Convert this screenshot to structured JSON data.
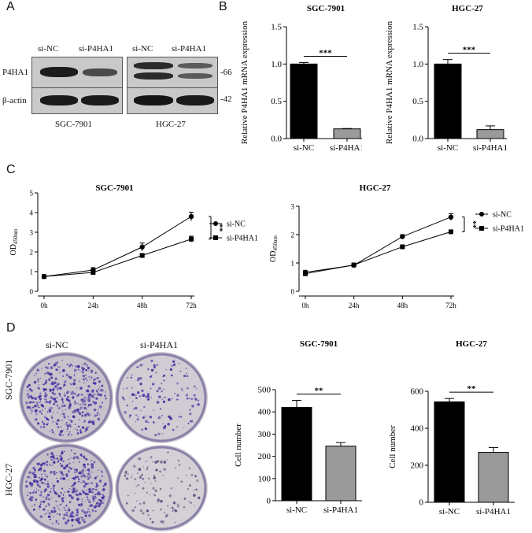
{
  "panels": {
    "a": "A",
    "b": "B",
    "c": "C",
    "d": "D"
  },
  "western": {
    "groups": [
      {
        "cell": "SGC-7901",
        "lanes": [
          "si-NC",
          "si-P4HA1"
        ]
      },
      {
        "cell": "HGC-27",
        "lanes": [
          "si-NC",
          "si-P4HA1"
        ]
      }
    ],
    "proteins": [
      "P4HA1",
      "β-actin"
    ],
    "markers": [
      "-66",
      "-42"
    ]
  },
  "colony": {
    "columns": [
      "si-NC",
      "si-P4HA1"
    ],
    "rows": [
      "SGC-7901",
      "HGC-27"
    ]
  },
  "chart_data": [
    {
      "id": "b1",
      "type": "bar",
      "title": "SGC-7901",
      "ylabel": "Relative P4HA1 mRNA expression",
      "xlabel": "",
      "categories": [
        "si-NC",
        "si-P4HA1"
      ],
      "values": [
        1.0,
        0.13
      ],
      "errors": [
        0.02,
        0.005
      ],
      "colors": [
        "#000000",
        "#9a9a9a"
      ],
      "ylim": [
        0,
        1.5
      ],
      "yticks": [
        0.0,
        0.5,
        1.0,
        1.5
      ],
      "significance": "***"
    },
    {
      "id": "b2",
      "type": "bar",
      "title": "HGC-27",
      "ylabel": "Relative P4HA1 mRNA expression",
      "xlabel": "",
      "categories": [
        "si-NC",
        "si-P4HA1"
      ],
      "values": [
        1.0,
        0.12
      ],
      "errors": [
        0.06,
        0.05
      ],
      "colors": [
        "#000000",
        "#9a9a9a"
      ],
      "ylim": [
        0,
        1.5
      ],
      "yticks": [
        0.0,
        0.5,
        1.0,
        1.5
      ],
      "significance": "***"
    },
    {
      "id": "c1",
      "type": "line",
      "title": "SGC-7901",
      "ylabel": "OD450nm",
      "x": [
        "0h",
        "24h",
        "48h",
        "72h"
      ],
      "ylim": [
        0,
        5
      ],
      "yticks": [
        0,
        1,
        2,
        3,
        4,
        5
      ],
      "series": [
        {
          "name": "si-NC",
          "marker": "circle",
          "values": [
            0.75,
            1.08,
            2.25,
            3.8
          ],
          "errors": [
            0.05,
            0.12,
            0.2,
            0.22
          ]
        },
        {
          "name": "si-P4HA1",
          "marker": "square",
          "values": [
            0.75,
            0.96,
            1.82,
            2.65
          ],
          "errors": [
            0.05,
            0.08,
            0.08,
            0.15
          ]
        }
      ],
      "significance": "**",
      "legend": "right"
    },
    {
      "id": "c2",
      "type": "line",
      "title": "HGC-27",
      "ylabel": "OD450nm",
      "x": [
        "0h",
        "24h",
        "48h",
        "72h"
      ],
      "ylim": [
        0,
        3
      ],
      "yticks": [
        0,
        1,
        2,
        3
      ],
      "series": [
        {
          "name": "si-NC",
          "marker": "circle",
          "values": [
            0.67,
            0.92,
            1.93,
            2.62
          ],
          "errors": [
            0.06,
            0.05,
            0.07,
            0.12
          ]
        },
        {
          "name": "si-P4HA1",
          "marker": "square",
          "values": [
            0.62,
            0.93,
            1.57,
            2.1
          ],
          "errors": [
            0.05,
            0.04,
            0.04,
            0.05
          ]
        }
      ],
      "significance": "**",
      "legend": "right"
    },
    {
      "id": "d1",
      "type": "bar",
      "title": "SGC-7901",
      "ylabel": "Cell number",
      "xlabel": "",
      "categories": [
        "si-NC",
        "si-P4HA1"
      ],
      "values": [
        420,
        246
      ],
      "errors": [
        32,
        16
      ],
      "colors": [
        "#000000",
        "#9a9a9a"
      ],
      "ylim": [
        0,
        500
      ],
      "yticks": [
        0,
        100,
        200,
        300,
        400,
        500
      ],
      "significance": "**"
    },
    {
      "id": "d2",
      "type": "bar",
      "title": "HGC-27",
      "ylabel": "Cell number",
      "xlabel": "",
      "categories": [
        "si-NC",
        "si-P4HA1"
      ],
      "values": [
        543,
        270
      ],
      "errors": [
        18,
        26
      ],
      "colors": [
        "#000000",
        "#9a9a9a"
      ],
      "ylim": [
        0,
        600
      ],
      "yticks": [
        0,
        200,
        400,
        600
      ],
      "significance": "**"
    }
  ]
}
